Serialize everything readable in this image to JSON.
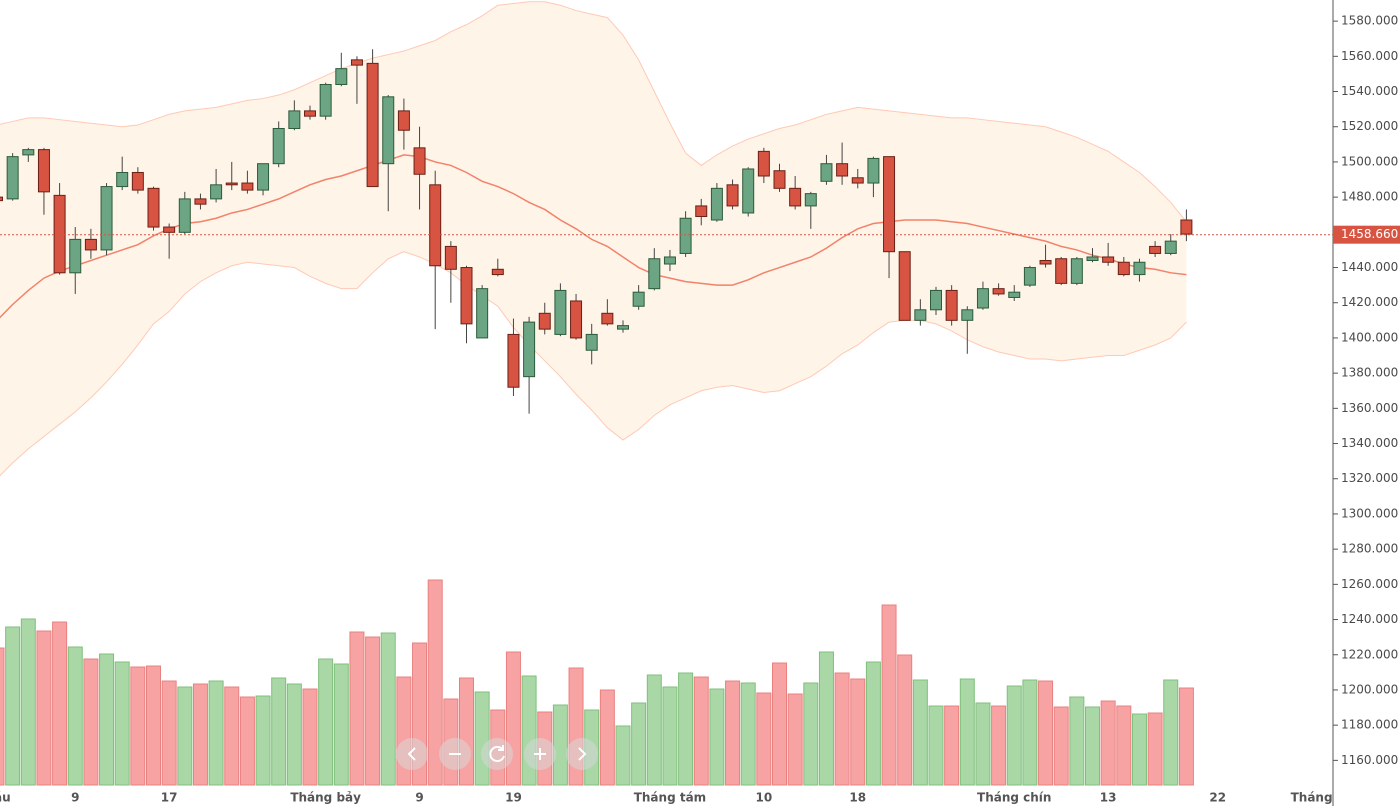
{
  "chart_data": {
    "type": "candlestick",
    "categories": [
      "áu",
      null,
      null,
      null,
      null,
      "9",
      null,
      null,
      null,
      null,
      null,
      "17",
      null,
      null,
      null,
      null,
      null,
      null,
      null,
      null,
      null,
      "Tháng bảy",
      null,
      null,
      null,
      null,
      null,
      "9",
      null,
      null,
      null,
      null,
      null,
      "19",
      null,
      null,
      null,
      null,
      null,
      null,
      null,
      null,
      null,
      "Tháng tám",
      null,
      null,
      null,
      null,
      null,
      "10",
      null,
      null,
      null,
      null,
      null,
      "18",
      null,
      null,
      null,
      null,
      null,
      null,
      null,
      null,
      null,
      "Tháng chín",
      null,
      null,
      null,
      null,
      null,
      "13",
      null,
      null,
      null,
      null,
      null,
      null,
      "22",
      null,
      null,
      null,
      null,
      null,
      "Tháng"
    ],
    "open": [
      1480,
      1479,
      1504,
      1507,
      1481,
      1437,
      1456,
      1450,
      1486,
      1494,
      1485,
      1463,
      1460,
      1479,
      1479,
      1488,
      1488,
      1484,
      1499,
      1519,
      1529,
      1526,
      1544,
      1558,
      1556,
      1499,
      1529,
      1508,
      1487,
      1452,
      1440,
      1400,
      1439,
      1402,
      1378,
      1414,
      1402,
      1421,
      1393,
      1414,
      1405,
      1418,
      1428,
      1442,
      1448,
      1475,
      1467,
      1487,
      1471,
      1506,
      1495,
      1485,
      1475,
      1489,
      1499,
      1491,
      1488,
      1503,
      1449,
      1410,
      1416,
      1427,
      1410,
      1417,
      1428,
      1423,
      1430,
      1444,
      1445,
      1431,
      1444,
      1446,
      1443,
      1436,
      1452,
      1448,
      1467,
      null,
      null,
      null,
      null,
      null,
      null,
      null,
      null
    ],
    "high": [
      1482,
      1505,
      1508,
      1508,
      1488,
      1463,
      1462,
      1488,
      1503,
      1497,
      1486,
      1465,
      1483,
      1482,
      1496,
      1500,
      1495,
      1499,
      1523,
      1535,
      1532,
      1545,
      1562,
      1560,
      1564,
      1538,
      1536,
      1520,
      1495,
      1455,
      1441,
      1430,
      1445,
      1411,
      1412,
      1420,
      1431,
      1425,
      1408,
      1422,
      1410,
      1430,
      1451,
      1450,
      1472,
      1479,
      1488,
      1490,
      1497,
      1508,
      1499,
      1492,
      1483,
      1504,
      1511,
      1496,
      1503,
      1503,
      1449,
      1422,
      1429,
      1430,
      1418,
      1432,
      1431,
      1430,
      1441,
      1453,
      1446,
      1446,
      1451,
      1454,
      1446,
      1445,
      1455,
      1459,
      1473,
      null,
      null,
      null,
      null,
      null,
      null,
      null,
      null
    ],
    "low": [
      1476,
      1478,
      1500,
      1470,
      1436,
      1425,
      1445,
      1447,
      1484,
      1482,
      1461,
      1445,
      1459,
      1473,
      1477,
      1484,
      1482,
      1481,
      1497,
      1518,
      1524,
      1524,
      1543,
      1533,
      1486,
      1472,
      1507,
      1473,
      1405,
      1420,
      1397,
      1400,
      1435,
      1367,
      1357,
      1402,
      1401,
      1399,
      1385,
      1407,
      1403,
      1416,
      1427,
      1438,
      1446,
      1464,
      1466,
      1473,
      1469,
      1488,
      1483,
      1473,
      1462,
      1487,
      1487,
      1485,
      1480,
      1434,
      1410,
      1407,
      1413,
      1407,
      1391,
      1416,
      1424,
      1421,
      1429,
      1440,
      1430,
      1430,
      1443,
      1441,
      1435,
      1432,
      1446,
      1447,
      1455,
      null,
      null,
      null,
      null,
      null,
      null,
      null,
      null
    ],
    "close": [
      1478,
      1503,
      1507,
      1483,
      1437,
      1456,
      1450,
      1486,
      1494,
      1484,
      1463,
      1460,
      1479,
      1476,
      1487,
      1487,
      1484,
      1499,
      1519,
      1529,
      1526,
      1544,
      1553,
      1555,
      1486,
      1537,
      1518,
      1493,
      1441,
      1439,
      1408,
      1428,
      1436,
      1372,
      1409,
      1405,
      1427,
      1400,
      1402,
      1408,
      1407,
      1426,
      1445,
      1446,
      1468,
      1469,
      1485,
      1475,
      1496,
      1492,
      1485,
      1475,
      1482,
      1499,
      1492,
      1488,
      1502,
      1449,
      1410,
      1416,
      1427,
      1410,
      1416,
      1428,
      1425,
      1426,
      1440,
      1442,
      1431,
      1445,
      1446,
      1443,
      1436,
      1443,
      1448,
      1455,
      1459,
      null,
      null,
      null,
      null,
      null,
      null,
      null,
      null
    ],
    "volume": [
      137,
      158,
      166,
      154,
      163,
      138,
      126,
      131,
      123,
      118,
      119,
      104,
      98,
      101,
      104,
      98,
      88,
      89,
      107,
      101,
      96,
      126,
      121,
      153,
      148,
      152,
      108,
      142,
      205,
      86,
      107,
      93,
      75,
      133,
      109,
      73,
      80,
      117,
      75,
      95,
      59,
      82,
      110,
      98,
      112,
      108,
      96,
      104,
      102,
      92,
      122,
      91,
      102,
      133,
      112,
      106,
      123,
      180,
      130,
      105,
      79,
      79,
      106,
      82,
      79,
      99,
      105,
      104,
      78,
      88,
      78,
      84,
      79,
      71,
      72,
      105,
      97,
      null,
      null,
      null,
      null,
      null,
      null,
      null,
      null
    ],
    "bollinger": {
      "upper": [
        1521,
        1523,
        1525,
        1525,
        1524,
        1523,
        1522,
        1521,
        1520,
        1521,
        1524,
        1527,
        1529,
        1530,
        1531,
        1533,
        1535,
        1536,
        1538,
        1541,
        1545,
        1549,
        1553,
        1556,
        1559,
        1561,
        1563,
        1566,
        1569,
        1574,
        1578,
        1583,
        1589,
        1590,
        1591,
        1591,
        1589,
        1586,
        1584,
        1582,
        1572,
        1558,
        1540,
        1522,
        1505,
        1498,
        1504,
        1509,
        1513,
        1516,
        1519,
        1521,
        1524,
        1527,
        1529,
        1531,
        1530,
        1529,
        1528,
        1527,
        1526,
        1525,
        1525,
        1524,
        1523,
        1522,
        1521,
        1520,
        1517,
        1514,
        1510,
        1506,
        1500,
        1494,
        1486,
        1477,
        1466,
        null,
        null,
        null,
        null,
        null,
        null,
        null,
        null
      ],
      "middle": [
        1410,
        1419,
        1427,
        1434,
        1438,
        1441,
        1444,
        1447,
        1450,
        1453,
        1458,
        1462,
        1465,
        1466,
        1468,
        1471,
        1473,
        1476,
        1479,
        1483,
        1487,
        1490,
        1492,
        1495,
        1498,
        1501,
        1504,
        1503,
        1500,
        1498,
        1494,
        1489,
        1486,
        1482,
        1477,
        1473,
        1467,
        1462,
        1456,
        1452,
        1446,
        1440,
        1436,
        1434,
        1432,
        1431,
        1430,
        1430,
        1433,
        1437,
        1440,
        1443,
        1446,
        1451,
        1457,
        1462,
        1465,
        1466,
        1467,
        1467,
        1467,
        1466,
        1465,
        1463,
        1461,
        1459,
        1457,
        1455,
        1452,
        1450,
        1447,
        1445,
        1442,
        1440,
        1439,
        1437,
        1436,
        null,
        null,
        null,
        null,
        null,
        null,
        null,
        null
      ],
      "lower": [
        1320,
        1329,
        1337,
        1344,
        1351,
        1358,
        1366,
        1375,
        1385,
        1396,
        1408,
        1415,
        1425,
        1432,
        1437,
        1441,
        1443,
        1442,
        1441,
        1440,
        1435,
        1431,
        1428,
        1428,
        1437,
        1445,
        1449,
        1446,
        1442,
        1437,
        1430,
        1424,
        1418,
        1406,
        1396,
        1387,
        1378,
        1368,
        1359,
        1349,
        1342,
        1348,
        1356,
        1362,
        1366,
        1370,
        1372,
        1373,
        1371,
        1369,
        1370,
        1374,
        1378,
        1384,
        1391,
        1396,
        1403,
        1409,
        1410,
        1410,
        1408,
        1404,
        1399,
        1395,
        1392,
        1390,
        1388,
        1388,
        1387,
        1388,
        1389,
        1390,
        1390,
        1393,
        1396,
        1400,
        1409,
        null,
        null,
        null,
        null,
        null,
        null,
        null,
        null
      ]
    },
    "last_price": {
      "value": 1458.66,
      "label": "1458.660"
    },
    "up_color": "#6ba583",
    "down_color": "#d75442",
    "volume_up_color": "#a9d8a6",
    "volume_down_color": "#f8a3a3",
    "band_fill": "#fff4e8",
    "band_edge": "#ffc9b5",
    "middle_color": "#f2826a",
    "ylim": [
      1146,
      1592
    ],
    "yticks": [
      {
        "value": 1160,
        "label": "1160.000"
      },
      {
        "value": 1180,
        "label": "1180.000"
      },
      {
        "value": 1200,
        "label": "1200.000"
      },
      {
        "value": 1220,
        "label": "1220.000"
      },
      {
        "value": 1240,
        "label": "1240.000"
      },
      {
        "value": 1260,
        "label": "1260.000"
      },
      {
        "value": 1280,
        "label": "1280.000"
      },
      {
        "value": 1300,
        "label": "1300.000"
      },
      {
        "value": 1320,
        "label": "1320.000"
      },
      {
        "value": 1340,
        "label": "1340.000"
      },
      {
        "value": 1360,
        "label": "1360.000"
      },
      {
        "value": 1380,
        "label": "1380.000"
      },
      {
        "value": 1400,
        "label": "1400.000"
      },
      {
        "value": 1420,
        "label": "1420.000"
      },
      {
        "value": 1440,
        "label": "1440.000"
      },
      {
        "value": 1460,
        "label": "1460.000"
      },
      {
        "value": 1480,
        "label": "1480.000"
      },
      {
        "value": 1500,
        "label": "1500.000"
      },
      {
        "value": 1520,
        "label": "1520.000"
      },
      {
        "value": 1540,
        "label": "1540.000"
      },
      {
        "value": 1560,
        "label": "1560.000"
      },
      {
        "value": 1580,
        "label": "1580.000"
      }
    ]
  }
}
